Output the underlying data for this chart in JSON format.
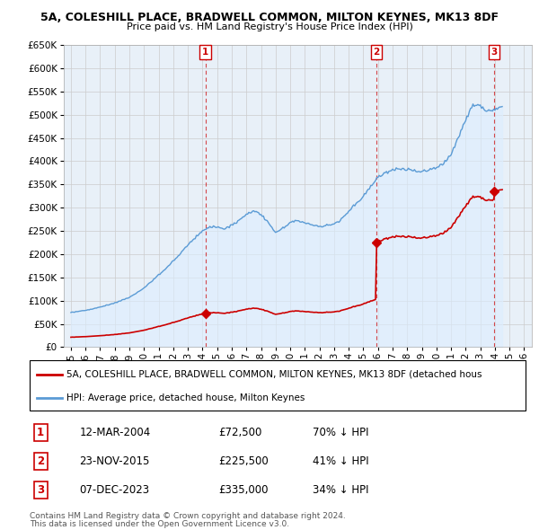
{
  "title": "5A, COLESHILL PLACE, BRADWELL COMMON, MILTON KEYNES, MK13 8DF",
  "subtitle": "Price paid vs. HM Land Registry's House Price Index (HPI)",
  "legend_line1": "5A, COLESHILL PLACE, BRADWELL COMMON, MILTON KEYNES, MK13 8DF (detached hous",
  "legend_line2": "HPI: Average price, detached house, Milton Keynes",
  "footer1": "Contains HM Land Registry data © Crown copyright and database right 2024.",
  "footer2": "This data is licensed under the Open Government Licence v3.0.",
  "sale_points": [
    {
      "label": "1",
      "date": "12-MAR-2004",
      "price": 72500,
      "pct": "70%",
      "dir": "↓",
      "x": 2004.19
    },
    {
      "label": "2",
      "date": "23-NOV-2015",
      "price": 225500,
      "pct": "41%",
      "dir": "↓",
      "x": 2015.89
    },
    {
      "label": "3",
      "date": "07-DEC-2023",
      "price": 335000,
      "pct": "34%",
      "dir": "↓",
      "x": 2023.93
    }
  ],
  "hpi_color": "#5b9bd5",
  "hpi_fill_color": "#ddeeff",
  "sale_color": "#cc0000",
  "dashed_color": "#cc0000",
  "grid_color": "#cccccc",
  "bg_color": "#e8f0f8",
  "ylim": [
    0,
    650000
  ],
  "xlim": [
    1994.5,
    2026.5
  ],
  "yticks": [
    0,
    50000,
    100000,
    150000,
    200000,
    250000,
    300000,
    350000,
    400000,
    450000,
    500000,
    550000,
    600000,
    650000
  ],
  "xticks": [
    1995,
    1996,
    1997,
    1998,
    1999,
    2000,
    2001,
    2002,
    2003,
    2004,
    2005,
    2006,
    2007,
    2008,
    2009,
    2010,
    2011,
    2012,
    2013,
    2014,
    2015,
    2016,
    2017,
    2018,
    2019,
    2020,
    2021,
    2022,
    2023,
    2024,
    2025,
    2026
  ]
}
